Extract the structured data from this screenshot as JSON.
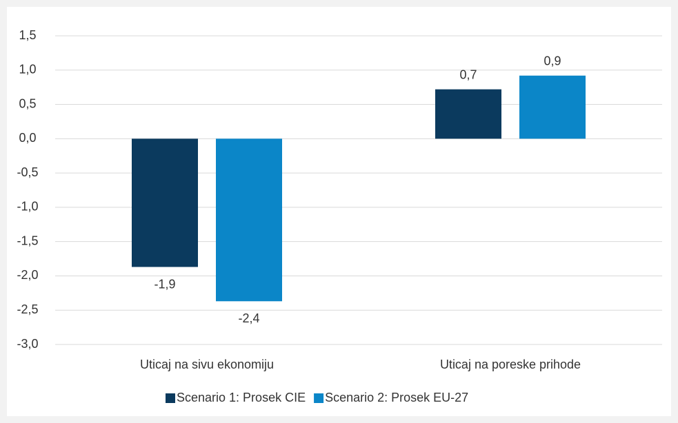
{
  "chart_data": {
    "type": "bar",
    "categories": [
      "Uticaj na sivu ekonomiju",
      "Uticaj na poreske prihode"
    ],
    "series": [
      {
        "name": "Scenario 1: Prosek CIE",
        "color": "#0b3a5e",
        "values": [
          -1.87,
          0.72
        ],
        "value_labels": [
          "-1,9",
          "0,7"
        ]
      },
      {
        "name": "Scenario 2: Prosek EU-27",
        "color": "#0b86c8",
        "values": [
          -2.37,
          0.92
        ],
        "value_labels": [
          "-2,4",
          "0,9"
        ]
      }
    ],
    "ylim": [
      -3.0,
      1.5
    ],
    "yticks": [
      {
        "value": -3.0,
        "label": "-3,0"
      },
      {
        "value": -2.5,
        "label": "-2,5"
      },
      {
        "value": -2.0,
        "label": "-2,0"
      },
      {
        "value": -1.5,
        "label": "-1,5"
      },
      {
        "value": -1.0,
        "label": "-1,0"
      },
      {
        "value": -0.5,
        "label": "-0,5"
      },
      {
        "value": 0.0,
        "label": "0,0"
      },
      {
        "value": 0.5,
        "label": "0,5"
      },
      {
        "value": 1.0,
        "label": "1,0"
      },
      {
        "value": 1.5,
        "label": "1,5"
      }
    ],
    "grid": true,
    "legend": "bottom"
  }
}
